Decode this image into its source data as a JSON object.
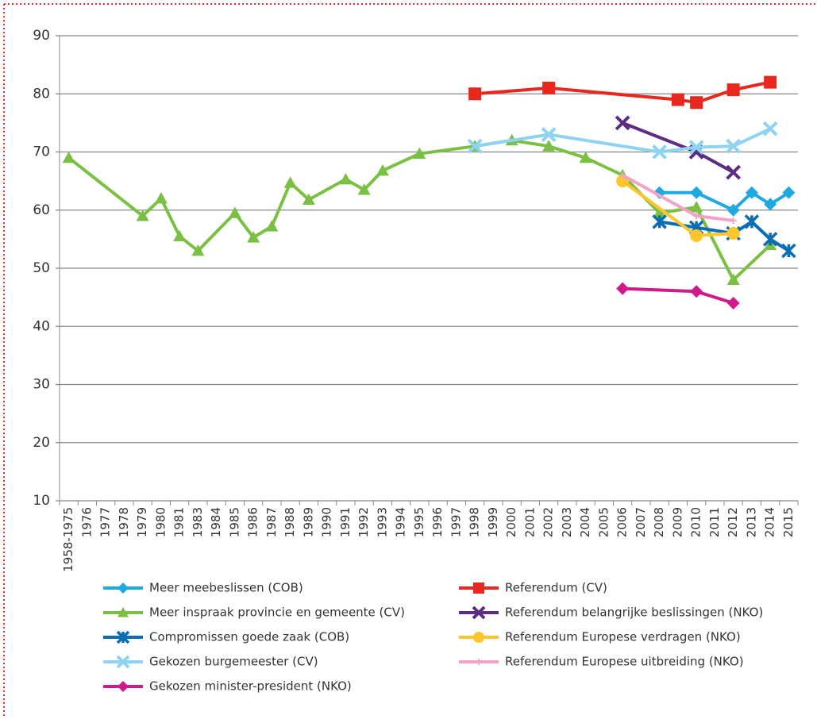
{
  "chart_data": {
    "type": "line",
    "categories": [
      "1958-1975",
      "1976",
      "1977",
      "1978",
      "1979",
      "1980",
      "1981",
      "1983",
      "1984",
      "1985",
      "1986",
      "1987",
      "1988",
      "1989",
      "1990",
      "1991",
      "1992",
      "1993",
      "1994",
      "1995",
      "1996",
      "1997",
      "1998",
      "1999",
      "2000",
      "2001",
      "2002",
      "2003",
      "2004",
      "2005",
      "2006",
      "2007",
      "2008",
      "2009",
      "2010",
      "2011",
      "2012",
      "2013",
      "2014",
      "2015"
    ],
    "ylim": [
      10,
      90
    ],
    "yticks": [
      10,
      20,
      30,
      40,
      50,
      60,
      70,
      80,
      90
    ],
    "grid": true,
    "series": [
      {
        "name": "Meer meebeslissen (COB)",
        "color": "#1fa9e1",
        "marker": "diamond",
        "x": [
          "2008",
          "2010",
          "2012",
          "2013",
          "2014",
          "2015"
        ],
        "values": [
          63,
          63,
          60,
          63,
          61,
          63
        ]
      },
      {
        "name": "Referendum (CV)",
        "color": "#e8281e",
        "marker": "square",
        "x": [
          "1998",
          "2002",
          "2009",
          "2010",
          "2012",
          "2014"
        ],
        "values": [
          80,
          81,
          79,
          78.5,
          80.7,
          82
        ]
      },
      {
        "name": "Meer inspraak provincie en gemeente (CV)",
        "color": "#7ac143",
        "marker": "triangle",
        "x": [
          "1958-1975",
          "1979",
          "1980",
          "1981",
          "1983",
          "1985",
          "1986",
          "1987",
          "1988",
          "1989",
          "1991",
          "1992",
          "1993",
          "1995",
          "1998",
          "2000",
          "2002",
          "2004",
          "2006",
          "2008",
          "2010",
          "2012",
          "2014"
        ],
        "values": [
          69,
          59,
          62,
          55.5,
          53,
          59.5,
          55.3,
          57.2,
          64.7,
          61.8,
          65.3,
          63.5,
          66.8,
          69.7,
          71,
          72,
          71,
          69,
          66,
          59.5,
          60.5,
          48,
          54
        ]
      },
      {
        "name": "Referendum belangrijke beslissingen (NKO)",
        "color": "#5c2d82",
        "marker": "x",
        "x": [
          "2006",
          "2010",
          "2012"
        ],
        "values": [
          75,
          70,
          66.5
        ]
      },
      {
        "name": "Compromissen goede zaak (COB)",
        "color": "#0a6eb4",
        "marker": "star",
        "x": [
          "2008",
          "2010",
          "2012",
          "2013",
          "2014",
          "2015"
        ],
        "values": [
          58,
          57,
          56,
          58,
          55,
          53
        ]
      },
      {
        "name": "Referendum Europese verdragen (NKO)",
        "color": "#fcc62c",
        "marker": "circle",
        "x": [
          "2006",
          "2010",
          "2012"
        ],
        "values": [
          65,
          55.6,
          56
        ]
      },
      {
        "name": "Gekozen burgemeester (CV)",
        "color": "#8fd3f3",
        "marker": "x",
        "x": [
          "1998",
          "2002",
          "2008",
          "2010",
          "2012",
          "2014"
        ],
        "values": [
          71,
          73,
          70,
          70.8,
          71,
          74
        ]
      },
      {
        "name": "Referendum Europese uitbreiding (NKO)",
        "color": "#f3a3c7",
        "marker": "plus",
        "x": [
          "2006",
          "2010",
          "2012"
        ],
        "values": [
          66,
          59,
          58.2
        ]
      },
      {
        "name": "Gekozen minister-president (NKO)",
        "color": "#d0198b",
        "marker": "diamond",
        "x": [
          "2006",
          "2010",
          "2012"
        ],
        "values": [
          46.5,
          46,
          44
        ]
      }
    ]
  }
}
